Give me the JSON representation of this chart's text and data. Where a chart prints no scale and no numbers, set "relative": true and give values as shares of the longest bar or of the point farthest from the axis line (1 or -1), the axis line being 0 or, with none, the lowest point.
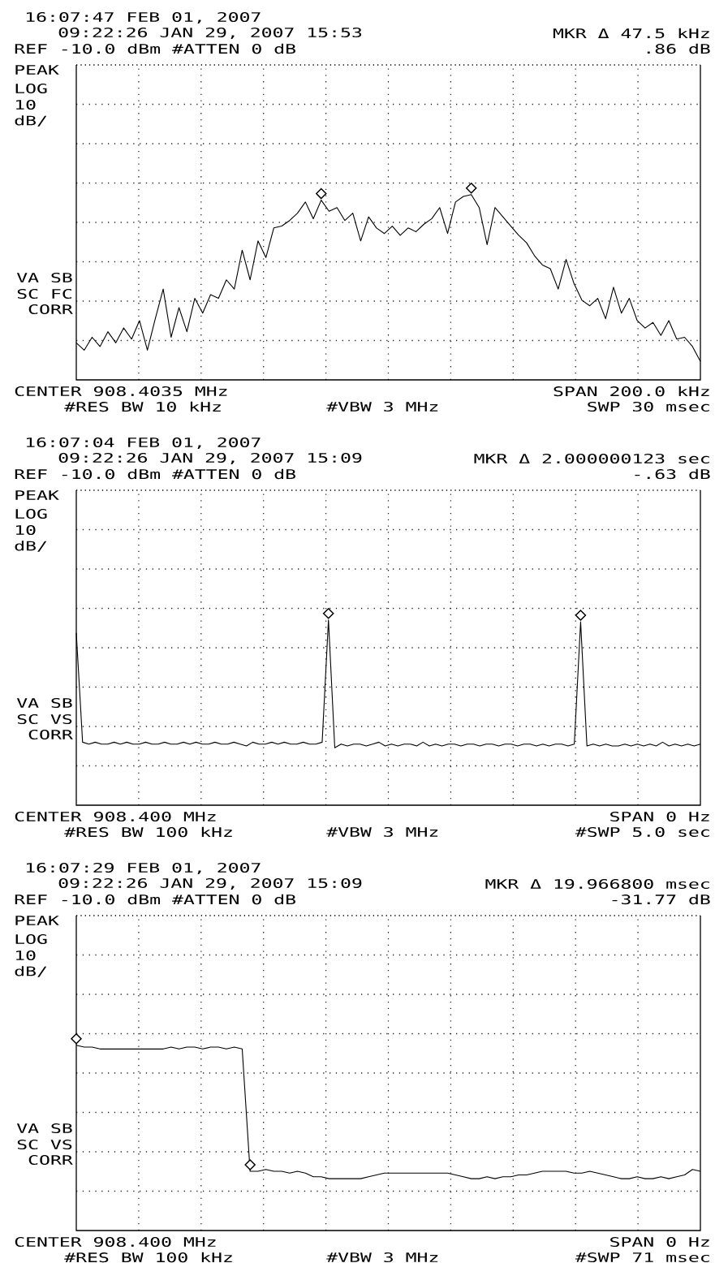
{
  "chart_data": [
    {
      "type": "line",
      "relative": true,
      "grid": true,
      "title": "16:07:47 FEB 01, 2007",
      "subtitle": "09:22:26 JAN 29, 2007 15:53",
      "annotations": [
        "REF -10.0 dBm #ATTEN 0 dB",
        "MKR Δ 47.5 kHz",
        ".86 dB",
        "PEAK",
        "LOG",
        "10",
        "dB/",
        "VA SB",
        "SC FC",
        "CORR",
        "CENTER 908.4035 MHz",
        "SPAN 200.0 kHz",
        "#RES BW 10 kHz",
        "#VBW 3 MHz",
        "SWP 30 msec"
      ],
      "categories": [
        null,
        null,
        null,
        null,
        null,
        null,
        null,
        null,
        null,
        null,
        null,
        null,
        null,
        null,
        null,
        null,
        null,
        null,
        null,
        null,
        null,
        null,
        null,
        null,
        null,
        null,
        null,
        null,
        null,
        null,
        null,
        null,
        null,
        null,
        null,
        null,
        null,
        null,
        null,
        null,
        null,
        null,
        null,
        null,
        null,
        null,
        null,
        null,
        null,
        null,
        null,
        null,
        null,
        null,
        null,
        null,
        null,
        null,
        null,
        null,
        null,
        null,
        null,
        null,
        null,
        null,
        null,
        null,
        null,
        null,
        null,
        null,
        null,
        null,
        null,
        null,
        null,
        null,
        null,
        null
      ],
      "series": [
        {
          "color": "#000000",
          "marker": "none",
          "values": [
            0.2,
            0.16,
            0.23,
            0.18,
            0.26,
            0.2,
            0.28,
            0.22,
            0.32,
            0.16,
            0.33,
            0.49,
            0.23,
            0.39,
            0.26,
            0.44,
            0.36,
            0.46,
            0.44,
            0.54,
            0.49,
            0.7,
            0.54,
            0.75,
            0.66,
            0.82,
            0.83,
            0.86,
            0.9,
            0.96,
            0.87,
            0.97,
            0.91,
            0.93,
            0.86,
            0.9,
            0.75,
            0.88,
            0.82,
            0.79,
            0.83,
            0.78,
            0.82,
            0.8,
            0.84,
            0.87,
            0.93,
            0.79,
            0.96,
            0.99,
            1.0,
            0.93,
            0.73,
            0.93,
            0.88,
            0.83,
            0.78,
            0.74,
            0.67,
            0.62,
            0.6,
            0.49,
            0.65,
            0.52,
            0.43,
            0.4,
            0.44,
            0.33,
            0.5,
            0.36,
            0.44,
            0.32,
            0.28,
            0.31,
            0.24,
            0.32,
            0.22,
            0.23,
            0.18,
            0.1
          ]
        }
      ]
    },
    {
      "type": "line",
      "relative": true,
      "grid": true,
      "title": "16:07:04 FEB 01, 2007",
      "subtitle": "09:22:26 JAN 29, 2007 15:09",
      "annotations": [
        "REF -10.0 dBm #ATTEN 0 dB",
        "MKR Δ 2.000000123 sec",
        "-.63 dB",
        "PEAK",
        "LOG",
        "10",
        "dB/",
        "VA SB",
        "SC VS",
        "CORR",
        "CENTER 908.400 MHz",
        "SPAN 0 Hz",
        "#RES BW 100 kHz",
        "#VBW 3 MHz",
        "#SWP 5.0 sec"
      ],
      "categories": [
        null,
        null,
        null,
        null,
        null,
        null,
        null,
        null,
        null,
        null,
        null,
        null,
        null,
        null,
        null,
        null,
        null,
        null,
        null,
        null,
        null,
        null,
        null,
        null,
        null,
        null,
        null,
        null,
        null,
        null,
        null,
        null,
        null,
        null,
        null,
        null,
        null,
        null,
        null,
        null,
        null,
        null,
        null,
        null,
        null,
        null,
        null,
        null,
        null,
        null,
        null,
        null,
        null,
        null,
        null,
        null,
        null,
        null,
        null,
        null,
        null,
        null,
        null,
        null,
        null,
        null,
        null,
        null,
        null,
        null,
        null,
        null,
        null,
        null,
        null,
        null,
        null,
        null,
        null,
        null,
        null,
        null,
        null,
        null,
        null,
        null,
        null,
        null,
        null,
        null,
        null,
        null,
        null,
        null,
        null,
        null,
        null,
        null,
        null,
        null
      ],
      "series": [
        {
          "color": "#000000",
          "marker": "none",
          "values": [
            0.93,
            0.34,
            0.33,
            0.34,
            0.33,
            0.33,
            0.34,
            0.33,
            0.34,
            0.33,
            0.33,
            0.34,
            0.33,
            0.33,
            0.34,
            0.33,
            0.33,
            0.34,
            0.33,
            0.34,
            0.33,
            0.33,
            0.34,
            0.33,
            0.33,
            0.34,
            0.33,
            0.32,
            0.34,
            0.33,
            0.33,
            0.34,
            0.33,
            0.34,
            0.33,
            0.33,
            0.34,
            0.33,
            0.33,
            0.34,
            1.0,
            0.31,
            0.33,
            0.32,
            0.33,
            0.33,
            0.32,
            0.33,
            0.34,
            0.32,
            0.33,
            0.32,
            0.33,
            0.33,
            0.32,
            0.34,
            0.32,
            0.33,
            0.32,
            0.33,
            0.33,
            0.32,
            0.33,
            0.33,
            0.32,
            0.33,
            0.33,
            0.32,
            0.33,
            0.33,
            0.32,
            0.33,
            0.33,
            0.32,
            0.33,
            0.32,
            0.33,
            0.33,
            0.32,
            0.33,
            0.99,
            0.32,
            0.33,
            0.32,
            0.33,
            0.32,
            0.32,
            0.33,
            0.32,
            0.33,
            0.32,
            0.33,
            0.32,
            0.34,
            0.32,
            0.33,
            0.32,
            0.33,
            0.32,
            0.33
          ]
        }
      ]
    },
    {
      "type": "line",
      "relative": true,
      "grid": true,
      "title": "16:07:29 FEB 01, 2007",
      "subtitle": "09:22:26 JAN 29, 2007 15:09",
      "annotations": [
        "REF -10.0 dBm #ATTEN 0 dB",
        "MKR Δ 19.966800 msec",
        "-31.77 dB",
        "PEAK",
        "LOG",
        "10",
        "dB/",
        "VA SB",
        "SC VS",
        "CORR",
        "CENTER 908.400 MHz",
        "SPAN 0 Hz",
        "#RES BW 100 kHz",
        "#VBW 3 MHz",
        "#SWP 71 msec"
      ],
      "categories": [
        null,
        null,
        null,
        null,
        null,
        null,
        null,
        null,
        null,
        null,
        null,
        null,
        null,
        null,
        null,
        null,
        null,
        null,
        null,
        null,
        null,
        null,
        null,
        null,
        null,
        null,
        null,
        null,
        null,
        null,
        null,
        null,
        null,
        null,
        null,
        null,
        null,
        null,
        null,
        null,
        null,
        null,
        null,
        null,
        null,
        null,
        null,
        null,
        null,
        null,
        null,
        null,
        null,
        null,
        null,
        null,
        null,
        null,
        null,
        null,
        null,
        null,
        null,
        null,
        null,
        null,
        null,
        null,
        null,
        null,
        null,
        null,
        null,
        null,
        null,
        null,
        null,
        null,
        null,
        null
      ],
      "series": [
        {
          "color": "#000000",
          "marker": "none",
          "values": [
            1.0,
            0.99,
            0.99,
            0.98,
            0.98,
            0.98,
            0.98,
            0.98,
            0.98,
            0.98,
            0.98,
            0.98,
            0.99,
            0.98,
            0.99,
            0.99,
            0.98,
            0.99,
            0.99,
            0.98,
            0.99,
            0.98,
            0.32,
            0.32,
            0.33,
            0.32,
            0.32,
            0.31,
            0.32,
            0.31,
            0.29,
            0.29,
            0.28,
            0.28,
            0.28,
            0.28,
            0.28,
            0.29,
            0.3,
            0.31,
            0.31,
            0.31,
            0.31,
            0.31,
            0.31,
            0.31,
            0.31,
            0.31,
            0.3,
            0.29,
            0.28,
            0.28,
            0.29,
            0.28,
            0.29,
            0.29,
            0.3,
            0.3,
            0.31,
            0.32,
            0.32,
            0.32,
            0.32,
            0.31,
            0.31,
            0.32,
            0.31,
            0.3,
            0.29,
            0.28,
            0.28,
            0.29,
            0.28,
            0.28,
            0.29,
            0.28,
            0.29,
            0.3,
            0.33,
            0.32
          ]
        }
      ]
    }
  ]
}
